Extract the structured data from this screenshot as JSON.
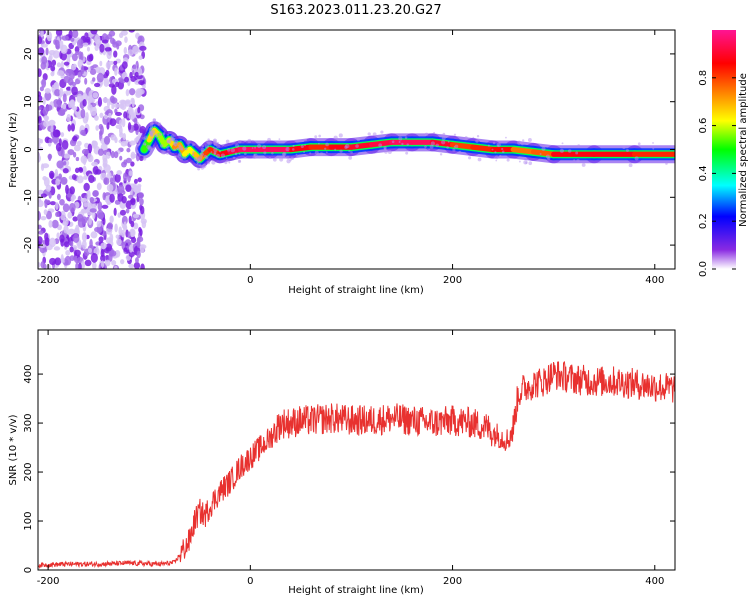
{
  "title": "S163.2023.011.23.20.G27",
  "chart_data": [
    {
      "type": "heatmap",
      "xlabel": "Height of straight line (km)",
      "ylabel": "Frequency (Hz)",
      "xlim": [
        -210,
        420
      ],
      "ylim": [
        -25,
        25
      ],
      "xticks": [
        -200,
        0,
        200,
        400
      ],
      "yticks": [
        -20,
        -10,
        0,
        10,
        20
      ],
      "noise_region_x": [
        -210,
        -105
      ],
      "signal_track": {
        "x": [
          -105,
          -100,
          -95,
          -90,
          -85,
          -80,
          -75,
          -70,
          -65,
          -60,
          -55,
          -50,
          -45,
          -40,
          -35,
          -30,
          -20,
          -10,
          0,
          20,
          40,
          60,
          80,
          100,
          120,
          140,
          160,
          180,
          200,
          220,
          240,
          260,
          280,
          300,
          340,
          380,
          420
        ],
        "frequency_hz": [
          0,
          2,
          4,
          3,
          1,
          2,
          0.5,
          1,
          -1,
          0,
          -1,
          -2,
          -1,
          0,
          -0.5,
          -1,
          -0.5,
          0,
          0,
          0,
          0,
          0.5,
          0.5,
          0.5,
          1,
          1.5,
          1.5,
          1.5,
          1,
          0.5,
          0,
          0,
          -0.5,
          -1,
          -1,
          -1,
          -1
        ],
        "normalized_amplitude": [
          0.45,
          0.6,
          0.7,
          0.6,
          0.55,
          0.6,
          0.7,
          0.75,
          0.65,
          0.6,
          0.65,
          0.7,
          0.75,
          0.85,
          0.8,
          0.85,
          0.9,
          0.95,
          0.95,
          0.95,
          0.95,
          0.8,
          0.85,
          0.9,
          0.9,
          0.95,
          0.95,
          0.95,
          0.85,
          0.75,
          0.9,
          0.8,
          0.7,
          0.85,
          0.9,
          0.85,
          0.8
        ]
      },
      "colorbar": {
        "label": "Normalized spectral amplitude",
        "range": [
          0.0,
          1.0
        ],
        "ticks": [
          0.0,
          0.2,
          0.4,
          0.6,
          0.8
        ],
        "colors": [
          "#ffffff",
          "#8a2be2",
          "#0000ff",
          "#00ffff",
          "#00ff00",
          "#ffff00",
          "#ff8000",
          "#ff0000",
          "#ff1493"
        ]
      }
    },
    {
      "type": "line",
      "xlabel": "Height of straight line (km)",
      "ylabel": "SNR (10 * v/v)",
      "xlim": [
        -210,
        420
      ],
      "ylim": [
        0,
        490
      ],
      "xticks": [
        -200,
        0,
        200,
        400
      ],
      "yticks": [
        0,
        100,
        200,
        300,
        400
      ],
      "color": "#e8312f",
      "series": [
        {
          "x": [
            -210,
            -180,
            -150,
            -120,
            -90,
            -75,
            -70,
            -60,
            -55,
            -50,
            -45,
            -40,
            -30,
            -20,
            -10,
            0,
            10,
            20,
            25,
            30,
            40,
            50,
            60,
            80,
            100,
            120,
            140,
            160,
            180,
            200,
            220,
            235,
            240,
            245,
            250,
            255,
            260,
            265,
            270,
            280,
            290,
            300,
            310,
            320,
            340,
            360,
            380,
            400,
            420
          ],
          "y": [
            10,
            12,
            12,
            14,
            12,
            15,
            30,
            60,
            100,
            120,
            110,
            130,
            160,
            180,
            210,
            230,
            250,
            270,
            285,
            300,
            300,
            305,
            305,
            310,
            305,
            305,
            310,
            305,
            300,
            305,
            300,
            290,
            280,
            275,
            270,
            265,
            290,
            360,
            370,
            380,
            385,
            400,
            395,
            390,
            385,
            385,
            380,
            375,
            370
          ]
        }
      ]
    }
  ]
}
